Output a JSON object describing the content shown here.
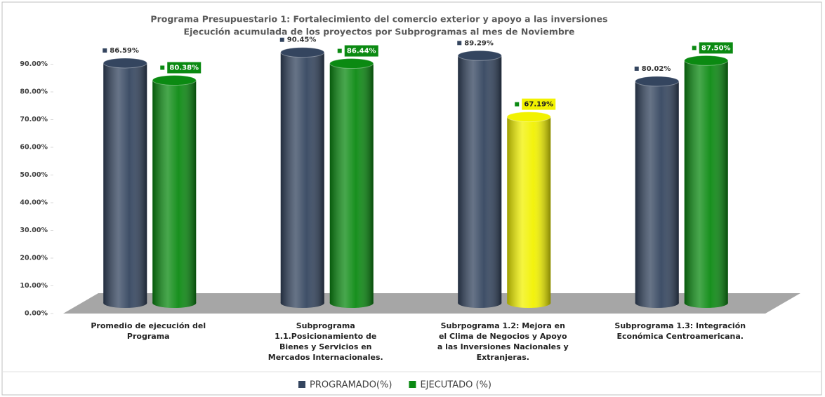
{
  "chart_data": {
    "type": "bar",
    "title": "Programa Presupuestario 1: Fortalecimiento del comercio exterior y apoyo a las inversiones",
    "subtitle": "Ejecución acumulada de los proyectos por Subprogramas al mes de Noviembre",
    "categories": [
      "Promedio de ejecución del Programa",
      "Subprograma 1.1.Posicionamiento de Bienes y Servicios en Mercados Internacionales.",
      "Subrpograma 1.2: Mejora en el Clima de Negocios y Apoyo a las Inversiones Nacionales y Extranjeras.",
      "Subprograma 1.3: Integración Económica Centroamericana."
    ],
    "series": [
      {
        "name": "PROGRAMADO(%)",
        "color": "#34455f",
        "values": [
          86.59,
          90.45,
          89.29,
          80.02
        ],
        "value_labels": [
          "86.59%",
          "90.45%",
          "89.29%",
          "80.02%"
        ]
      },
      {
        "name": "EJECUTADO (%)",
        "color": "#0b8a12",
        "colors": [
          "#0b8a12",
          "#0b8a12",
          "#f2f200",
          "#0b8a12"
        ],
        "label_boxes": true,
        "values": [
          80.38,
          86.44,
          67.19,
          87.5
        ],
        "value_labels": [
          "80.38%",
          "86.44%",
          "67.19%",
          "87.50%"
        ]
      }
    ],
    "ylim": [
      0,
      100
    ],
    "yticks": [
      {
        "value": 0,
        "label": "0.00%"
      },
      {
        "value": 10,
        "label": "10.00%"
      },
      {
        "value": 20,
        "label": "20.00%"
      },
      {
        "value": 30,
        "label": "30.00%"
      },
      {
        "value": 40,
        "label": "40.00%"
      },
      {
        "value": 50,
        "label": "50.00%"
      },
      {
        "value": 60,
        "label": "60.00%"
      },
      {
        "value": 70,
        "label": "70.00%"
      },
      {
        "value": 80,
        "label": "80.00%"
      },
      {
        "value": 90,
        "label": "90.00%"
      }
    ],
    "legend": "bottom"
  }
}
